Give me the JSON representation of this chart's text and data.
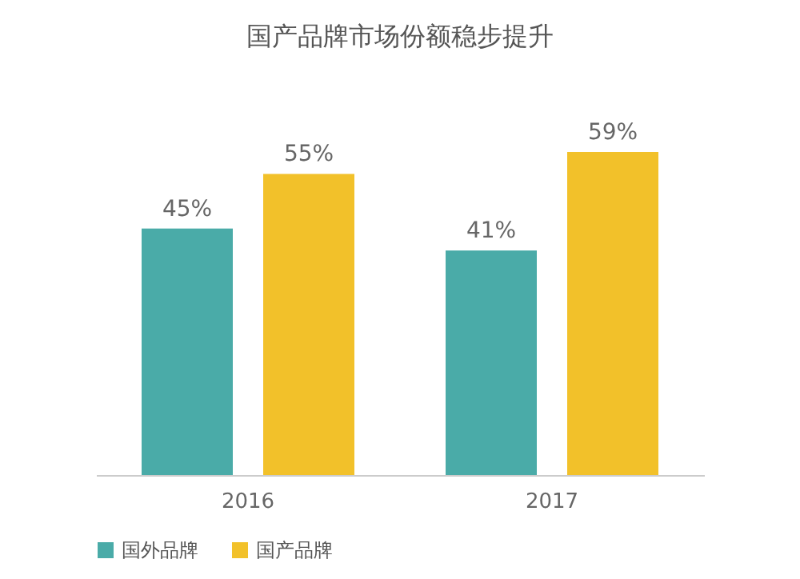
{
  "chart_data": {
    "type": "bar",
    "title": "国产品牌市场份额稳步提升",
    "categories": [
      "2016",
      "2017"
    ],
    "series": [
      {
        "name": "国外品牌",
        "color": "#4aaba8",
        "values": [
          45,
          41
        ],
        "value_labels": [
          "45%",
          "41%"
        ]
      },
      {
        "name": "国产品牌",
        "color": "#f2c12a",
        "values": [
          55,
          59
        ],
        "value_labels": [
          "55%",
          "59%"
        ]
      }
    ],
    "legend": "bottom",
    "grid": false
  }
}
